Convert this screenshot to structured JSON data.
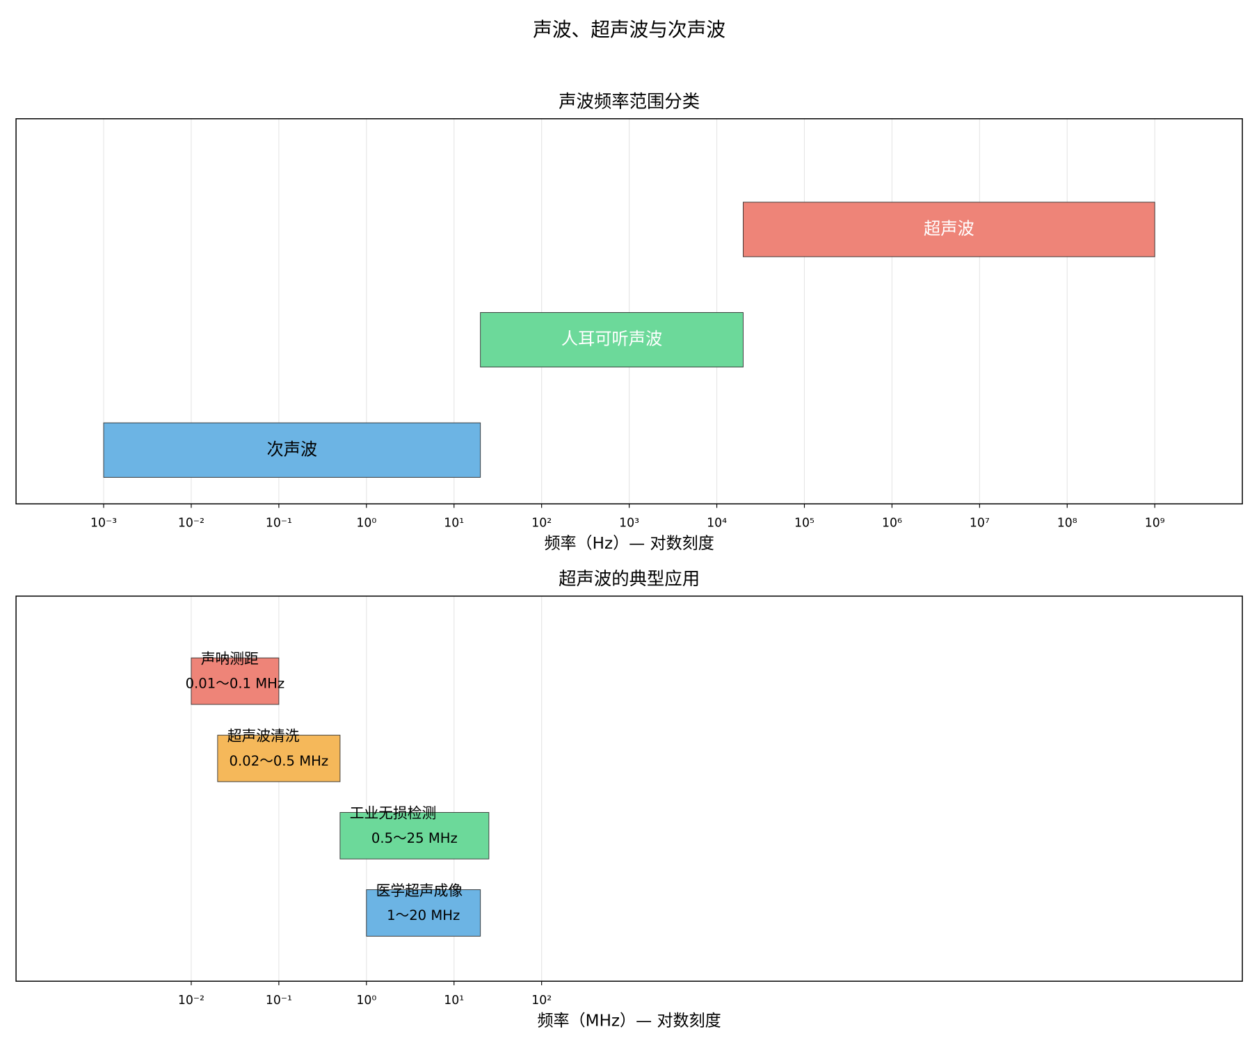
{
  "title": "声波、超声波与次声波",
  "chart_data": [
    {
      "type": "range_bar",
      "title": "声波频率范围分类",
      "xlabel": "频率（Hz）— 对数刻度",
      "categories": [
        "次声波",
        "人耳可听声波",
        "超声波"
      ],
      "values": [
        [
          0.001,
          20
        ],
        [
          20,
          20000
        ],
        [
          20000,
          1000000000
        ]
      ],
      "colors": [
        "#6cb4e4",
        "#6cd99a",
        "#ee8478"
      ],
      "label_colors": [
        "#000000",
        "#ffffff",
        "#ffffff"
      ],
      "xscale": "log",
      "xlim": [
        0.0001,
        10000000000
      ],
      "xticks": [
        {
          "value": 0.001,
          "label": "10⁻³"
        },
        {
          "value": 0.01,
          "label": "10⁻²"
        },
        {
          "value": 0.1,
          "label": "10⁻¹"
        },
        {
          "value": 1,
          "label": "10⁰"
        },
        {
          "value": 10,
          "label": "10¹"
        },
        {
          "value": 100,
          "label": "10²"
        },
        {
          "value": 1000,
          "label": "10³"
        },
        {
          "value": 10000,
          "label": "10⁴"
        },
        {
          "value": 100000,
          "label": "10⁵"
        },
        {
          "value": 1000000,
          "label": "10⁶"
        },
        {
          "value": 10000000,
          "label": "10⁷"
        },
        {
          "value": 100000000,
          "label": "10⁸"
        },
        {
          "value": 1000000000,
          "label": "10⁹"
        }
      ],
      "grid": true
    },
    {
      "type": "range_bar",
      "title": "超声波的典型应用",
      "xlabel": "频率（MHz）— 对数刻度",
      "categories": [
        "声呐测距",
        "超声波清洗",
        "工业无损检测",
        "医学超声成像"
      ],
      "values": [
        [
          0.01,
          0.1
        ],
        [
          0.02,
          0.5
        ],
        [
          0.5,
          25
        ],
        [
          1,
          20
        ]
      ],
      "value_labels": [
        "0.01～0.1 MHz",
        "0.02～0.5 MHz",
        "0.5～25 MHz",
        "1～20 MHz"
      ],
      "colors": [
        "#ee8478",
        "#f5b85a",
        "#6cd99a",
        "#6cb4e4"
      ],
      "label_colors": [
        "#000000",
        "#000000",
        "#000000",
        "#000000"
      ],
      "xscale": "log",
      "xlim": [
        0.0001,
        10000000000
      ],
      "xticks": [
        {
          "value": 0.01,
          "label": "10⁻²"
        },
        {
          "value": 0.1,
          "label": "10⁻¹"
        },
        {
          "value": 1,
          "label": "10⁰"
        },
        {
          "value": 10,
          "label": "10¹"
        },
        {
          "value": 100,
          "label": "10²"
        }
      ],
      "grid": true
    }
  ]
}
